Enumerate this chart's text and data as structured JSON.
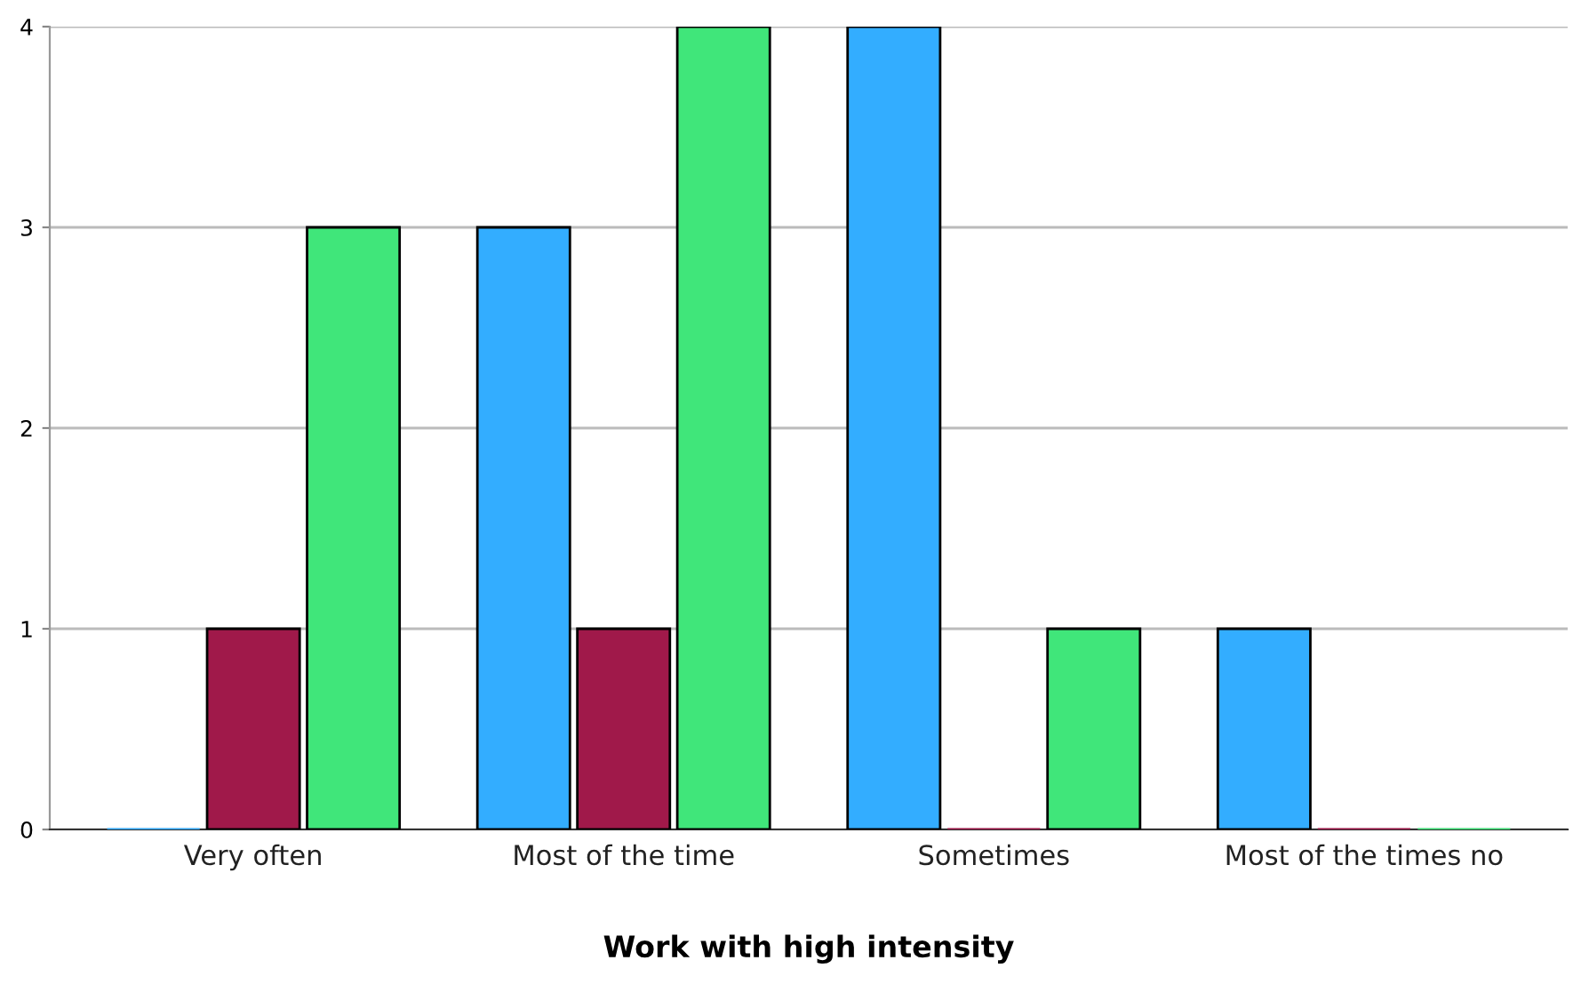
{
  "chart_data": {
    "type": "bar",
    "xlabel": "Work with high intensity",
    "categories": [
      "Very often",
      "Most of the time",
      "Sometimes",
      "Most of the times no"
    ],
    "series": [
      {
        "color": "#33adff",
        "values": [
          0,
          3,
          4,
          1
        ]
      },
      {
        "color": "#a0194a",
        "values": [
          1,
          1,
          0,
          0
        ]
      },
      {
        "color": "#40e67a",
        "values": [
          3,
          4,
          1,
          0
        ]
      }
    ],
    "ylim": [
      0,
      4
    ],
    "yticks": [
      0,
      1,
      2,
      3,
      4
    ],
    "grid": "y"
  }
}
